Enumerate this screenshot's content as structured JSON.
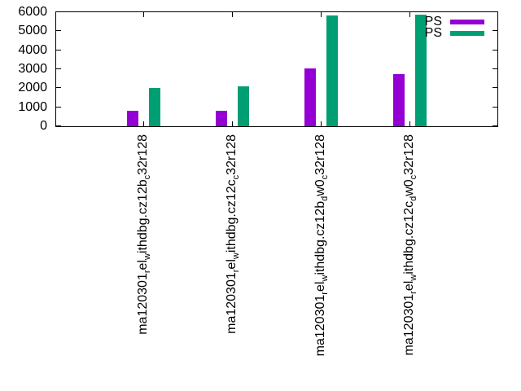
{
  "colors": {
    "background": "#FFFFFF",
    "axis": "#000000",
    "text": "#000000",
    "series1": "#9400D3",
    "series2": "#009E73"
  },
  "chart_data": {
    "type": "bar",
    "title": "",
    "xlabel": "",
    "ylabel": "",
    "grid": false,
    "ylim": [
      0,
      6000
    ],
    "yticks": [
      0,
      1000,
      2000,
      3000,
      4000,
      5000,
      6000
    ],
    "legend_position": "top-right-inside",
    "categories_plain": [
      "ma120301_rel_withdbg.cz12b_c32r128",
      "ma120301_rel_withdbg.cz12c_c32r128",
      "ma120301_rel_withdbg.cz12b_dw0_c32r128",
      "ma120301_rel_withdbg.cz12c_dw0_c32r128"
    ],
    "categories_enhanced": [
      [
        {
          "t": "ma120301"
        },
        {
          "t": "r",
          "sub": true
        },
        {
          "t": "el"
        },
        {
          "t": "w",
          "sub": true
        },
        {
          "t": "ithdbg.cz12b"
        },
        {
          "t": "c",
          "sub": true
        },
        {
          "t": "32r128"
        }
      ],
      [
        {
          "t": "ma120301"
        },
        {
          "t": "r",
          "sub": true
        },
        {
          "t": "el"
        },
        {
          "t": "w",
          "sub": true
        },
        {
          "t": "ithdbg.cz12c"
        },
        {
          "t": "c",
          "sub": true
        },
        {
          "t": "32r128"
        }
      ],
      [
        {
          "t": "ma120301"
        },
        {
          "t": "r",
          "sub": true
        },
        {
          "t": "el"
        },
        {
          "t": "w",
          "sub": true
        },
        {
          "t": "ithdbg.cz12b"
        },
        {
          "t": "d",
          "sub": true
        },
        {
          "t": "w0"
        },
        {
          "t": "c",
          "sub": true
        },
        {
          "t": "32r128"
        }
      ],
      [
        {
          "t": "ma120301"
        },
        {
          "t": "r",
          "sub": true
        },
        {
          "t": "el"
        },
        {
          "t": "w",
          "sub": true
        },
        {
          "t": "ithdbg.cz12c"
        },
        {
          "t": "d",
          "sub": true
        },
        {
          "t": "w0"
        },
        {
          "t": "c",
          "sub": true
        },
        {
          "t": "32r128"
        }
      ]
    ],
    "series": [
      {
        "name": "PS",
        "color": "#9400D3",
        "values": [
          800,
          830,
          3030,
          2750
        ]
      },
      {
        "name": "PS",
        "color": "#009E73",
        "values": [
          2010,
          2080,
          5840,
          5880
        ]
      }
    ]
  }
}
